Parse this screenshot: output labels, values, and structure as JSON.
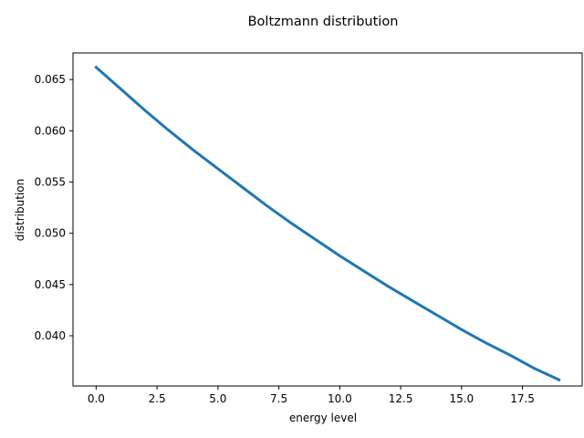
{
  "chart_data": {
    "type": "line",
    "title": "Boltzmann distribution",
    "xlabel": "energy level",
    "ylabel": "distribution",
    "xlim": [
      -0.95,
      19.95
    ],
    "ylim": [
      0.0351,
      0.0676
    ],
    "grid": false,
    "legend": "none",
    "x_ticks": [
      {
        "value": 0.0,
        "label": "0.0"
      },
      {
        "value": 2.5,
        "label": "2.5"
      },
      {
        "value": 5.0,
        "label": "5.0"
      },
      {
        "value": 7.5,
        "label": "7.5"
      },
      {
        "value": 10.0,
        "label": "10.0"
      },
      {
        "value": 12.5,
        "label": "12.5"
      },
      {
        "value": 15.0,
        "label": "15.0"
      },
      {
        "value": 17.5,
        "label": "17.5"
      }
    ],
    "y_ticks": [
      {
        "value": 0.04,
        "label": "0.040"
      },
      {
        "value": 0.045,
        "label": "0.045"
      },
      {
        "value": 0.05,
        "label": "0.050"
      },
      {
        "value": 0.055,
        "label": "0.055"
      },
      {
        "value": 0.06,
        "label": "0.060"
      },
      {
        "value": 0.065,
        "label": "0.065"
      }
    ],
    "series": [
      {
        "color": "#1f77b4",
        "x": [
          0,
          1,
          2,
          3,
          4,
          5,
          6,
          7,
          8,
          9,
          10,
          11,
          12,
          13,
          14,
          15,
          16,
          17,
          18,
          19
        ],
        "values": [
          0.0662,
          0.0641,
          0.062,
          0.06,
          0.0581,
          0.0563,
          0.0545,
          0.0527,
          0.051,
          0.0494,
          0.0478,
          0.0463,
          0.0448,
          0.0434,
          0.042,
          0.0406,
          0.0393,
          0.0381,
          0.0368,
          0.0357
        ]
      }
    ]
  }
}
